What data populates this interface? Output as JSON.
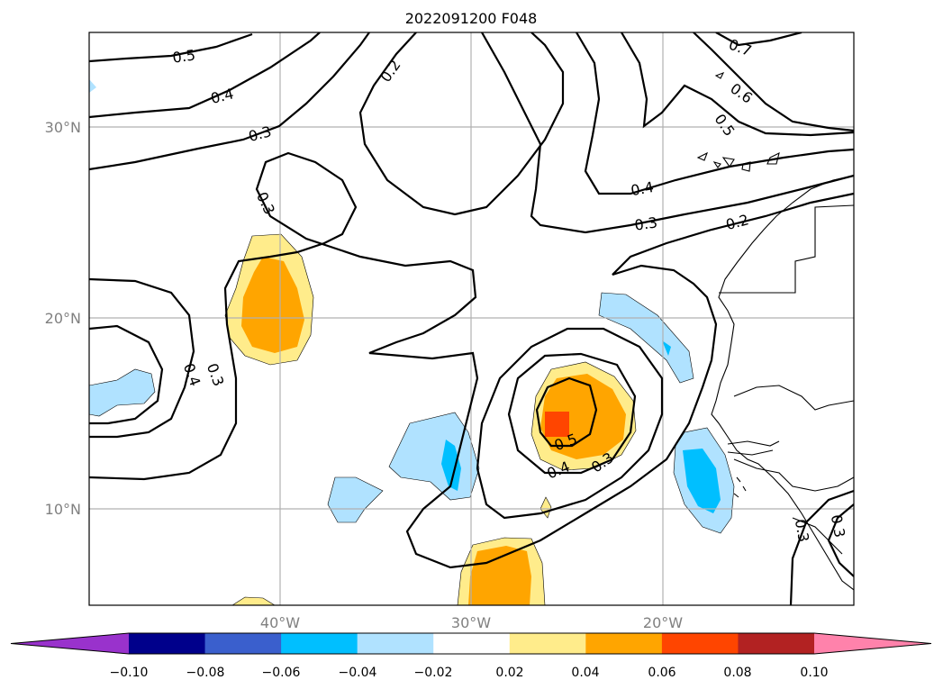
{
  "title": "2022091200 F048",
  "lat_ticks": [
    "30°N",
    "20°N",
    "10°N"
  ],
  "lon_ticks": [
    "40°W",
    "30°W",
    "20°W"
  ],
  "colorbar": {
    "ticks": [
      "−0.10",
      "−0.08",
      "−0.06",
      "−0.04",
      "−0.02",
      "0.02",
      "0.04",
      "0.06",
      "0.08",
      "0.10"
    ],
    "colors": [
      "#9932cc",
      "#00008b",
      "#3a5fcd",
      "#00bfff",
      "#b0e2ff",
      "#ffffff",
      "#ffec8b",
      "#ffa500",
      "#ff4500",
      "#b22222",
      "#ff82ab"
    ]
  },
  "fill_colors": {
    "pos_light": "#ffec8b",
    "pos_mid": "#ffa500",
    "pos_high": "#ff4500",
    "neg_light": "#b0e2ff",
    "neg_mid": "#00bfff"
  },
  "contour_labels": [
    "0.5",
    "0.4",
    "0.3",
    "0.2",
    "0.3",
    "0.7",
    "0.6",
    "0.5",
    "0.4",
    "0.3",
    "0.2",
    "0.4",
    "0.3",
    "0.5",
    "0.4",
    "0.3",
    "0.3",
    "0.3"
  ]
}
